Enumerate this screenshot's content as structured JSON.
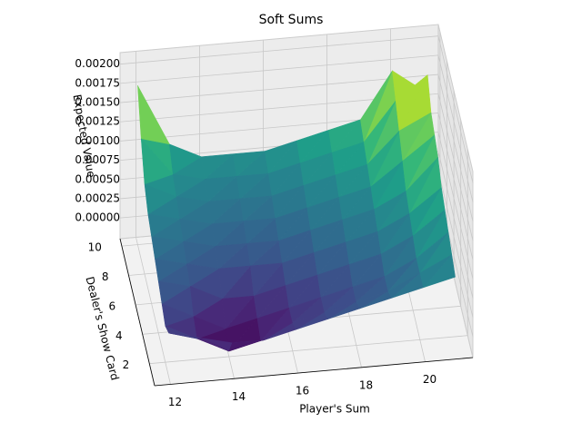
{
  "chart_data": {
    "type": "surface3d",
    "title": "Soft Sums",
    "xlabel": "Player's Sum",
    "ylabel": "Dealer's Show Card",
    "zlabel": "Expected Value",
    "x": [
      12,
      13,
      14,
      15,
      16,
      17,
      18,
      19,
      20,
      21
    ],
    "y": [
      1,
      2,
      3,
      4,
      5,
      6,
      7,
      8,
      9,
      10
    ],
    "z": [
      [
        0.0003,
        0.0002,
        0.0001,
        0.0001,
        0.0002,
        0.0003,
        0.0004,
        0.0005,
        0.0006,
        0.0007
      ],
      [
        0.0002,
        0.0,
        -0.0002,
        -0.0001,
        0.0001,
        0.0002,
        0.0003,
        0.0004,
        0.0006,
        0.0008
      ],
      [
        0.0003,
        0.0001,
        -0.0001,
        0.0,
        0.0001,
        0.0002,
        0.0003,
        0.0004,
        0.0006,
        0.0009
      ],
      [
        0.0004,
        0.0003,
        0.0001,
        0.0001,
        0.0002,
        0.0003,
        0.0004,
        0.0005,
        0.0007,
        0.001
      ],
      [
        0.0005,
        0.0004,
        0.0003,
        0.0003,
        0.0003,
        0.0004,
        0.0005,
        0.0006,
        0.0008,
        0.0011
      ],
      [
        0.0006,
        0.0005,
        0.0004,
        0.0004,
        0.0004,
        0.0005,
        0.0006,
        0.0007,
        0.0009,
        0.0013
      ],
      [
        0.0007,
        0.0006,
        0.0005,
        0.0005,
        0.0005,
        0.0006,
        0.0007,
        0.0008,
        0.0011,
        0.0014
      ],
      [
        0.0009,
        0.0007,
        0.0006,
        0.0006,
        0.0006,
        0.0007,
        0.0008,
        0.0009,
        0.0013,
        0.0015
      ],
      [
        0.0013,
        0.0008,
        0.0007,
        0.0007,
        0.0007,
        0.0008,
        0.0009,
        0.001,
        0.0015,
        0.0018
      ],
      [
        0.0018,
        0.001,
        0.0008,
        0.0008,
        0.0008,
        0.0009,
        0.001,
        0.0011,
        0.0017,
        0.0014
      ]
    ],
    "colormap": "viridis",
    "xlim": [
      11.5,
      21.5
    ],
    "ylim": [
      0.5,
      10.5
    ],
    "zlim": [
      -0.00027,
      0.00215
    ],
    "xticks": [
      12,
      14,
      16,
      18,
      20
    ],
    "yticks": [
      2,
      4,
      6,
      8,
      10
    ],
    "zticks": [
      {
        "value": 0,
        "label": "0.00000"
      },
      {
        "value": 0.00025,
        "label": "0.00025"
      },
      {
        "value": 0.0005,
        "label": "0.00050"
      },
      {
        "value": 0.00075,
        "label": "0.00075"
      },
      {
        "value": 0.001,
        "label": "0.00100"
      },
      {
        "value": 0.00125,
        "label": "0.00125"
      },
      {
        "value": 0.0015,
        "label": "0.00150"
      },
      {
        "value": 0.00175,
        "label": "0.00175"
      },
      {
        "value": 0.002,
        "label": "0.00200"
      }
    ],
    "grid": true
  }
}
